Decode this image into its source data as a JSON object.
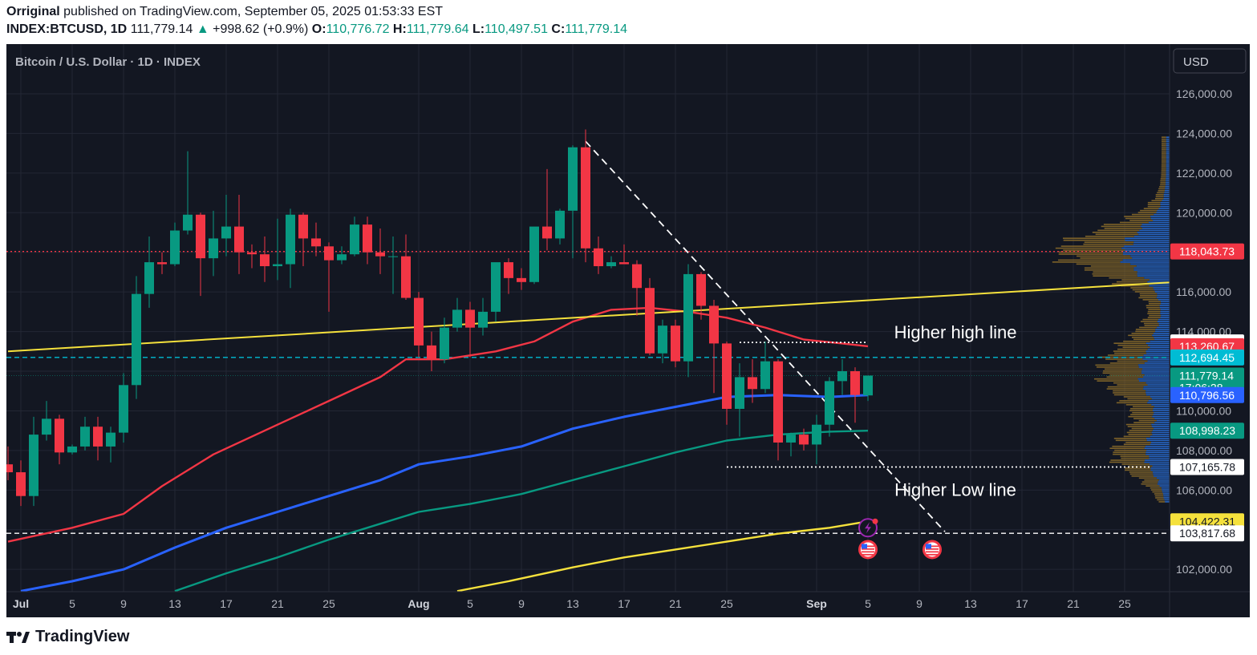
{
  "header": {
    "author": "Orriginal",
    "published_text": "published on TradingView.com, September 05, 2025 01:53:33 EST",
    "symbol": "INDEX:BTCUSD, 1D",
    "last": "111,779.14",
    "change": "+998.62 (+0.9%)",
    "o_label": "O:",
    "o_value": "110,776.72",
    "h_label": "H:",
    "h_value": "111,779.64",
    "l_label": "L:",
    "l_value": "110,497.51",
    "c_label": "C:",
    "c_value": "111,779.14"
  },
  "footer": {
    "brand": "TradingView"
  },
  "colors": {
    "background": "#131722",
    "up": "#089981",
    "down": "#f23645",
    "ma_red": "#f23645",
    "ma_blue": "#2962ff",
    "ma_teal": "#089981",
    "ma_yellow": "#f5e13c",
    "trendline": "#f5e13c",
    "vp_up": "#2a6fd6",
    "vp_down": "#8a6a2a"
  },
  "chart_data": {
    "type": "candlestick",
    "title": "Bitcoin / U.S. Dollar · 1D · INDEX",
    "currency_button": "USD",
    "y_ticks": [
      102000,
      104000,
      106000,
      108000,
      110000,
      112000,
      114000,
      116000,
      118000,
      120000,
      122000,
      124000,
      126000
    ],
    "ylim": [
      100800,
      127000
    ],
    "x_labels": [
      {
        "text": "Jul",
        "date": "2025-07-01"
      },
      {
        "text": "5",
        "date": "2025-07-05"
      },
      {
        "text": "9",
        "date": "2025-07-09"
      },
      {
        "text": "13",
        "date": "2025-07-13"
      },
      {
        "text": "17",
        "date": "2025-07-17"
      },
      {
        "text": "21",
        "date": "2025-07-21"
      },
      {
        "text": "25",
        "date": "2025-07-25"
      },
      {
        "text": "Aug",
        "date": "2025-08-01"
      },
      {
        "text": "5",
        "date": "2025-08-05"
      },
      {
        "text": "9",
        "date": "2025-08-09"
      },
      {
        "text": "13",
        "date": "2025-08-13"
      },
      {
        "text": "17",
        "date": "2025-08-17"
      },
      {
        "text": "21",
        "date": "2025-08-21"
      },
      {
        "text": "25",
        "date": "2025-08-25"
      },
      {
        "text": "Sep",
        "date": "2025-09-01"
      },
      {
        "text": "5",
        "date": "2025-09-05"
      },
      {
        "text": "9",
        "date": "2025-09-09"
      },
      {
        "text": "13",
        "date": "2025-09-13"
      },
      {
        "text": "17",
        "date": "2025-09-17"
      },
      {
        "text": "21",
        "date": "2025-09-21"
      },
      {
        "text": "25",
        "date": "2025-09-25"
      }
    ],
    "candles": [
      {
        "date": "2025-06-30",
        "o": 107300,
        "h": 108200,
        "l": 106500,
        "c": 106900
      },
      {
        "date": "2025-07-01",
        "o": 106900,
        "h": 107500,
        "l": 105200,
        "c": 105700
      },
      {
        "date": "2025-07-02",
        "o": 105700,
        "h": 109700,
        "l": 105200,
        "c": 108800
      },
      {
        "date": "2025-07-03",
        "o": 108800,
        "h": 110500,
        "l": 108500,
        "c": 109600
      },
      {
        "date": "2025-07-04",
        "o": 109600,
        "h": 109800,
        "l": 107300,
        "c": 107900
      },
      {
        "date": "2025-07-05",
        "o": 107900,
        "h": 108300,
        "l": 107800,
        "c": 108200
      },
      {
        "date": "2025-07-06",
        "o": 108200,
        "h": 109700,
        "l": 108000,
        "c": 109200
      },
      {
        "date": "2025-07-07",
        "o": 109200,
        "h": 109700,
        "l": 107500,
        "c": 108200
      },
      {
        "date": "2025-07-08",
        "o": 108200,
        "h": 109200,
        "l": 107400,
        "c": 108900
      },
      {
        "date": "2025-07-09",
        "o": 108900,
        "h": 111900,
        "l": 108400,
        "c": 111300
      },
      {
        "date": "2025-07-10",
        "o": 111300,
        "h": 116800,
        "l": 110600,
        "c": 115900
      },
      {
        "date": "2025-07-11",
        "o": 115900,
        "h": 118800,
        "l": 115200,
        "c": 117500
      },
      {
        "date": "2025-07-12",
        "o": 117500,
        "h": 118000,
        "l": 116900,
        "c": 117400
      },
      {
        "date": "2025-07-13",
        "o": 117400,
        "h": 119500,
        "l": 117300,
        "c": 119100
      },
      {
        "date": "2025-07-14",
        "o": 119100,
        "h": 123100,
        "l": 118900,
        "c": 119900
      },
      {
        "date": "2025-07-15",
        "o": 119900,
        "h": 120000,
        "l": 115800,
        "c": 117700
      },
      {
        "date": "2025-07-16",
        "o": 117700,
        "h": 120100,
        "l": 116800,
        "c": 118700
      },
      {
        "date": "2025-07-17",
        "o": 118700,
        "h": 120900,
        "l": 117800,
        "c": 119300
      },
      {
        "date": "2025-07-18",
        "o": 119300,
        "h": 120900,
        "l": 116900,
        "c": 118000
      },
      {
        "date": "2025-07-19",
        "o": 118000,
        "h": 118400,
        "l": 117200,
        "c": 117900
      },
      {
        "date": "2025-07-20",
        "o": 117900,
        "h": 118800,
        "l": 116500,
        "c": 117300
      },
      {
        "date": "2025-07-21",
        "o": 117300,
        "h": 119700,
        "l": 116600,
        "c": 117400
      },
      {
        "date": "2025-07-22",
        "o": 117400,
        "h": 120200,
        "l": 116200,
        "c": 119900
      },
      {
        "date": "2025-07-23",
        "o": 119900,
        "h": 120000,
        "l": 117300,
        "c": 118700
      },
      {
        "date": "2025-07-24",
        "o": 118700,
        "h": 119500,
        "l": 117800,
        "c": 118300
      },
      {
        "date": "2025-07-25",
        "o": 118300,
        "h": 118500,
        "l": 115000,
        "c": 117600
      },
      {
        "date": "2025-07-26",
        "o": 117600,
        "h": 118300,
        "l": 117400,
        "c": 117900
      },
      {
        "date": "2025-07-27",
        "o": 117900,
        "h": 119800,
        "l": 117800,
        "c": 119400
      },
      {
        "date": "2025-07-28",
        "o": 119400,
        "h": 119800,
        "l": 117400,
        "c": 118000
      },
      {
        "date": "2025-07-29",
        "o": 118000,
        "h": 119200,
        "l": 116900,
        "c": 117800
      },
      {
        "date": "2025-07-30",
        "o": 117800,
        "h": 118800,
        "l": 115900,
        "c": 117800
      },
      {
        "date": "2025-07-31",
        "o": 117800,
        "h": 118900,
        "l": 115600,
        "c": 115700
      },
      {
        "date": "2025-08-01",
        "o": 115700,
        "h": 116000,
        "l": 112700,
        "c": 113300
      },
      {
        "date": "2025-08-02",
        "o": 113300,
        "h": 114000,
        "l": 112000,
        "c": 112600
      },
      {
        "date": "2025-08-03",
        "o": 112600,
        "h": 114700,
        "l": 112400,
        "c": 114200
      },
      {
        "date": "2025-08-04",
        "o": 114200,
        "h": 115700,
        "l": 114000,
        "c": 115100
      },
      {
        "date": "2025-08-05",
        "o": 115100,
        "h": 115500,
        "l": 112700,
        "c": 114200
      },
      {
        "date": "2025-08-06",
        "o": 114200,
        "h": 115700,
        "l": 113800,
        "c": 115000
      },
      {
        "date": "2025-08-07",
        "o": 115000,
        "h": 117400,
        "l": 114500,
        "c": 117500
      },
      {
        "date": "2025-08-08",
        "o": 117500,
        "h": 117700,
        "l": 115900,
        "c": 116700
      },
      {
        "date": "2025-08-09",
        "o": 116700,
        "h": 117200,
        "l": 116100,
        "c": 116500
      },
      {
        "date": "2025-08-10",
        "o": 116500,
        "h": 119100,
        "l": 116400,
        "c": 119300
      },
      {
        "date": "2025-08-11",
        "o": 119300,
        "h": 122200,
        "l": 118100,
        "c": 118700
      },
      {
        "date": "2025-08-12",
        "o": 118700,
        "h": 120200,
        "l": 118400,
        "c": 120100
      },
      {
        "date": "2025-08-13",
        "o": 120100,
        "h": 123400,
        "l": 117700,
        "c": 123300
      },
      {
        "date": "2025-08-14",
        "o": 123300,
        "h": 124200,
        "l": 117500,
        "c": 118200
      },
      {
        "date": "2025-08-15",
        "o": 118200,
        "h": 118800,
        "l": 116900,
        "c": 117300
      },
      {
        "date": "2025-08-16",
        "o": 117300,
        "h": 117800,
        "l": 117200,
        "c": 117500
      },
      {
        "date": "2025-08-17",
        "o": 117500,
        "h": 118400,
        "l": 117400,
        "c": 117400
      },
      {
        "date": "2025-08-18",
        "o": 117400,
        "h": 117600,
        "l": 114800,
        "c": 116200
      },
      {
        "date": "2025-08-19",
        "o": 116200,
        "h": 116700,
        "l": 112800,
        "c": 112900
      },
      {
        "date": "2025-08-20",
        "o": 112900,
        "h": 114600,
        "l": 112400,
        "c": 114300
      },
      {
        "date": "2025-08-21",
        "o": 114300,
        "h": 114600,
        "l": 112200,
        "c": 112500
      },
      {
        "date": "2025-08-22",
        "o": 112500,
        "h": 117400,
        "l": 111700,
        "c": 116900
      },
      {
        "date": "2025-08-23",
        "o": 116900,
        "h": 117000,
        "l": 114600,
        "c": 115300
      },
      {
        "date": "2025-08-24",
        "o": 115300,
        "h": 115600,
        "l": 110900,
        "c": 113400
      },
      {
        "date": "2025-08-25",
        "o": 113400,
        "h": 113500,
        "l": 109300,
        "c": 110100
      },
      {
        "date": "2025-08-26",
        "o": 110100,
        "h": 112400,
        "l": 108700,
        "c": 111700
      },
      {
        "date": "2025-08-27",
        "o": 111700,
        "h": 112600,
        "l": 110400,
        "c": 111100
      },
      {
        "date": "2025-08-28",
        "o": 111100,
        "h": 113500,
        "l": 110900,
        "c": 112500
      },
      {
        "date": "2025-08-29",
        "o": 112500,
        "h": 112600,
        "l": 107500,
        "c": 108400
      },
      {
        "date": "2025-08-30",
        "o": 108400,
        "h": 108900,
        "l": 107700,
        "c": 108800
      },
      {
        "date": "2025-08-31",
        "o": 108800,
        "h": 109100,
        "l": 108000,
        "c": 108300
      },
      {
        "date": "2025-09-01",
        "o": 108300,
        "h": 109800,
        "l": 107300,
        "c": 109300
      },
      {
        "date": "2025-09-02",
        "o": 109300,
        "h": 111700,
        "l": 108700,
        "c": 111500
      },
      {
        "date": "2025-09-03",
        "o": 111500,
        "h": 112600,
        "l": 110800,
        "c": 112000
      },
      {
        "date": "2025-09-04",
        "o": 112000,
        "h": 112200,
        "l": 109400,
        "c": 110800
      },
      {
        "date": "2025-09-05",
        "o": 110776.72,
        "h": 111779.64,
        "l": 110497.51,
        "c": 111779.14
      }
    ],
    "moving_averages": [
      {
        "color": "#f23645",
        "points": [
          [
            "2025-06-30",
            103400
          ],
          [
            "2025-07-05",
            104100
          ],
          [
            "2025-07-09",
            104800
          ],
          [
            "2025-07-12",
            106200
          ],
          [
            "2025-07-16",
            107800
          ],
          [
            "2025-07-21",
            109300
          ],
          [
            "2025-07-25",
            110500
          ],
          [
            "2025-07-29",
            111700
          ],
          [
            "2025-07-31",
            112600
          ],
          [
            "2025-08-03",
            112600
          ],
          [
            "2025-08-07",
            113000
          ],
          [
            "2025-08-10",
            113500
          ],
          [
            "2025-08-13",
            114500
          ],
          [
            "2025-08-16",
            115100
          ],
          [
            "2025-08-19",
            115200
          ],
          [
            "2025-08-22",
            115000
          ],
          [
            "2025-08-25",
            114700
          ],
          [
            "2025-08-28",
            114200
          ],
          [
            "2025-08-31",
            113600
          ],
          [
            "2025-09-03",
            113400
          ],
          [
            "2025-09-05",
            113260.67
          ]
        ]
      },
      {
        "color": "#2962ff",
        "points": [
          [
            "2025-07-01",
            100900
          ],
          [
            "2025-07-05",
            101400
          ],
          [
            "2025-07-09",
            102000
          ],
          [
            "2025-07-13",
            103100
          ],
          [
            "2025-07-17",
            104100
          ],
          [
            "2025-07-21",
            104900
          ],
          [
            "2025-07-25",
            105700
          ],
          [
            "2025-07-29",
            106500
          ],
          [
            "2025-08-01",
            107300
          ],
          [
            "2025-08-05",
            107700
          ],
          [
            "2025-08-09",
            108200
          ],
          [
            "2025-08-13",
            109100
          ],
          [
            "2025-08-17",
            109700
          ],
          [
            "2025-08-21",
            110200
          ],
          [
            "2025-08-25",
            110700
          ],
          [
            "2025-08-29",
            110800
          ],
          [
            "2025-09-02",
            110700
          ],
          [
            "2025-09-05",
            110796.56
          ]
        ]
      },
      {
        "color": "#089981",
        "points": [
          [
            "2025-07-13",
            100900
          ],
          [
            "2025-07-17",
            101800
          ],
          [
            "2025-07-21",
            102600
          ],
          [
            "2025-07-25",
            103500
          ],
          [
            "2025-07-29",
            104300
          ],
          [
            "2025-08-01",
            104900
          ],
          [
            "2025-08-05",
            105300
          ],
          [
            "2025-08-09",
            105800
          ],
          [
            "2025-08-13",
            106500
          ],
          [
            "2025-08-17",
            107200
          ],
          [
            "2025-08-21",
            107900
          ],
          [
            "2025-08-25",
            108500
          ],
          [
            "2025-08-29",
            108800
          ],
          [
            "2025-09-02",
            108950
          ],
          [
            "2025-09-05",
            108998.23
          ]
        ]
      },
      {
        "color": "#f5e13c",
        "points": [
          [
            "2025-08-04",
            100900
          ],
          [
            "2025-08-08",
            101400
          ],
          [
            "2025-08-13",
            102100
          ],
          [
            "2025-08-17",
            102600
          ],
          [
            "2025-08-21",
            103000
          ],
          [
            "2025-08-25",
            103400
          ],
          [
            "2025-08-29",
            103800
          ],
          [
            "2025-09-02",
            104100
          ],
          [
            "2025-09-05",
            104422.31
          ]
        ]
      }
    ],
    "price_labels": [
      {
        "value": 118043.73,
        "text": "118,043.73",
        "bg": "#f23645",
        "fg": "#ffffff"
      },
      {
        "value": 113452.13,
        "text": "113,452.13",
        "bg": "#ffffff",
        "fg": "#131722"
      },
      {
        "value": 113260.67,
        "text": "113,260.67",
        "bg": "#f23645",
        "fg": "#ffffff"
      },
      {
        "value": 112694.45,
        "text": "112,694.45",
        "bg": "#00bcd4",
        "fg": "#ffffff"
      },
      {
        "value": 111779.14,
        "text": "111,779.14",
        "sub": "17:06:28",
        "bg": "#089981",
        "fg": "#ffffff"
      },
      {
        "value": 110796.56,
        "text": "110,796.56",
        "bg": "#2962ff",
        "fg": "#ffffff"
      },
      {
        "value": 108998.23,
        "text": "108,998.23",
        "bg": "#089981",
        "fg": "#ffffff"
      },
      {
        "value": 107165.78,
        "text": "107,165.78",
        "bg": "#ffffff",
        "fg": "#131722"
      },
      {
        "value": 104422.31,
        "text": "104,422.31",
        "bg": "#f5e13c",
        "fg": "#131722"
      },
      {
        "value": 103817.68,
        "text": "103,817.68",
        "bg": "#ffffff",
        "fg": "#131722"
      }
    ],
    "annotations": [
      {
        "text": "Higher high line",
        "date": "2025-09-09",
        "value": 113650
      },
      {
        "text": "Higher Low line",
        "date": "2025-09-09",
        "value": 105700
      }
    ],
    "horizontal_lines": [
      {
        "value": 118043.73,
        "color": "#f23645",
        "style": "dotted"
      },
      {
        "value": 112694.45,
        "color": "#00bcd4",
        "style": "dashed"
      },
      {
        "value": 103817.68,
        "color": "#ffffff",
        "style": "dashed"
      },
      {
        "value": 111779.14,
        "color": "#089981",
        "style": "dotted-faint"
      }
    ],
    "segments": [
      {
        "from": [
          "2025-08-26",
          113452.13
        ],
        "to": [
          "2025-09-05",
          113452.13
        ],
        "color": "#ffffff",
        "style": "dotted"
      },
      {
        "from": [
          "2025-08-25",
          107165.78
        ],
        "to": [
          "2025-09-27",
          107165.78
        ],
        "color": "#ffffff",
        "style": "dotted"
      },
      {
        "from": [
          "2025-08-14",
          123600
        ],
        "to": [
          "2025-09-11",
          103900
        ],
        "color": "#ffffff",
        "style": "dashed"
      },
      {
        "from": [
          "2025-06-30",
          113000
        ],
        "to": [
          "2025-09-29",
          116500
        ],
        "color": "#f5e13c",
        "style": "solid"
      }
    ],
    "event_icons": [
      {
        "date": "2025-09-05",
        "value": 104100,
        "kind": "lightning-icon"
      },
      {
        "date": "2025-09-05",
        "value": 103000,
        "kind": "us-flag-icon"
      },
      {
        "date": "2025-09-10",
        "value": 103000,
        "kind": "us-flag-icon"
      }
    ],
    "volume_profile": true
  }
}
